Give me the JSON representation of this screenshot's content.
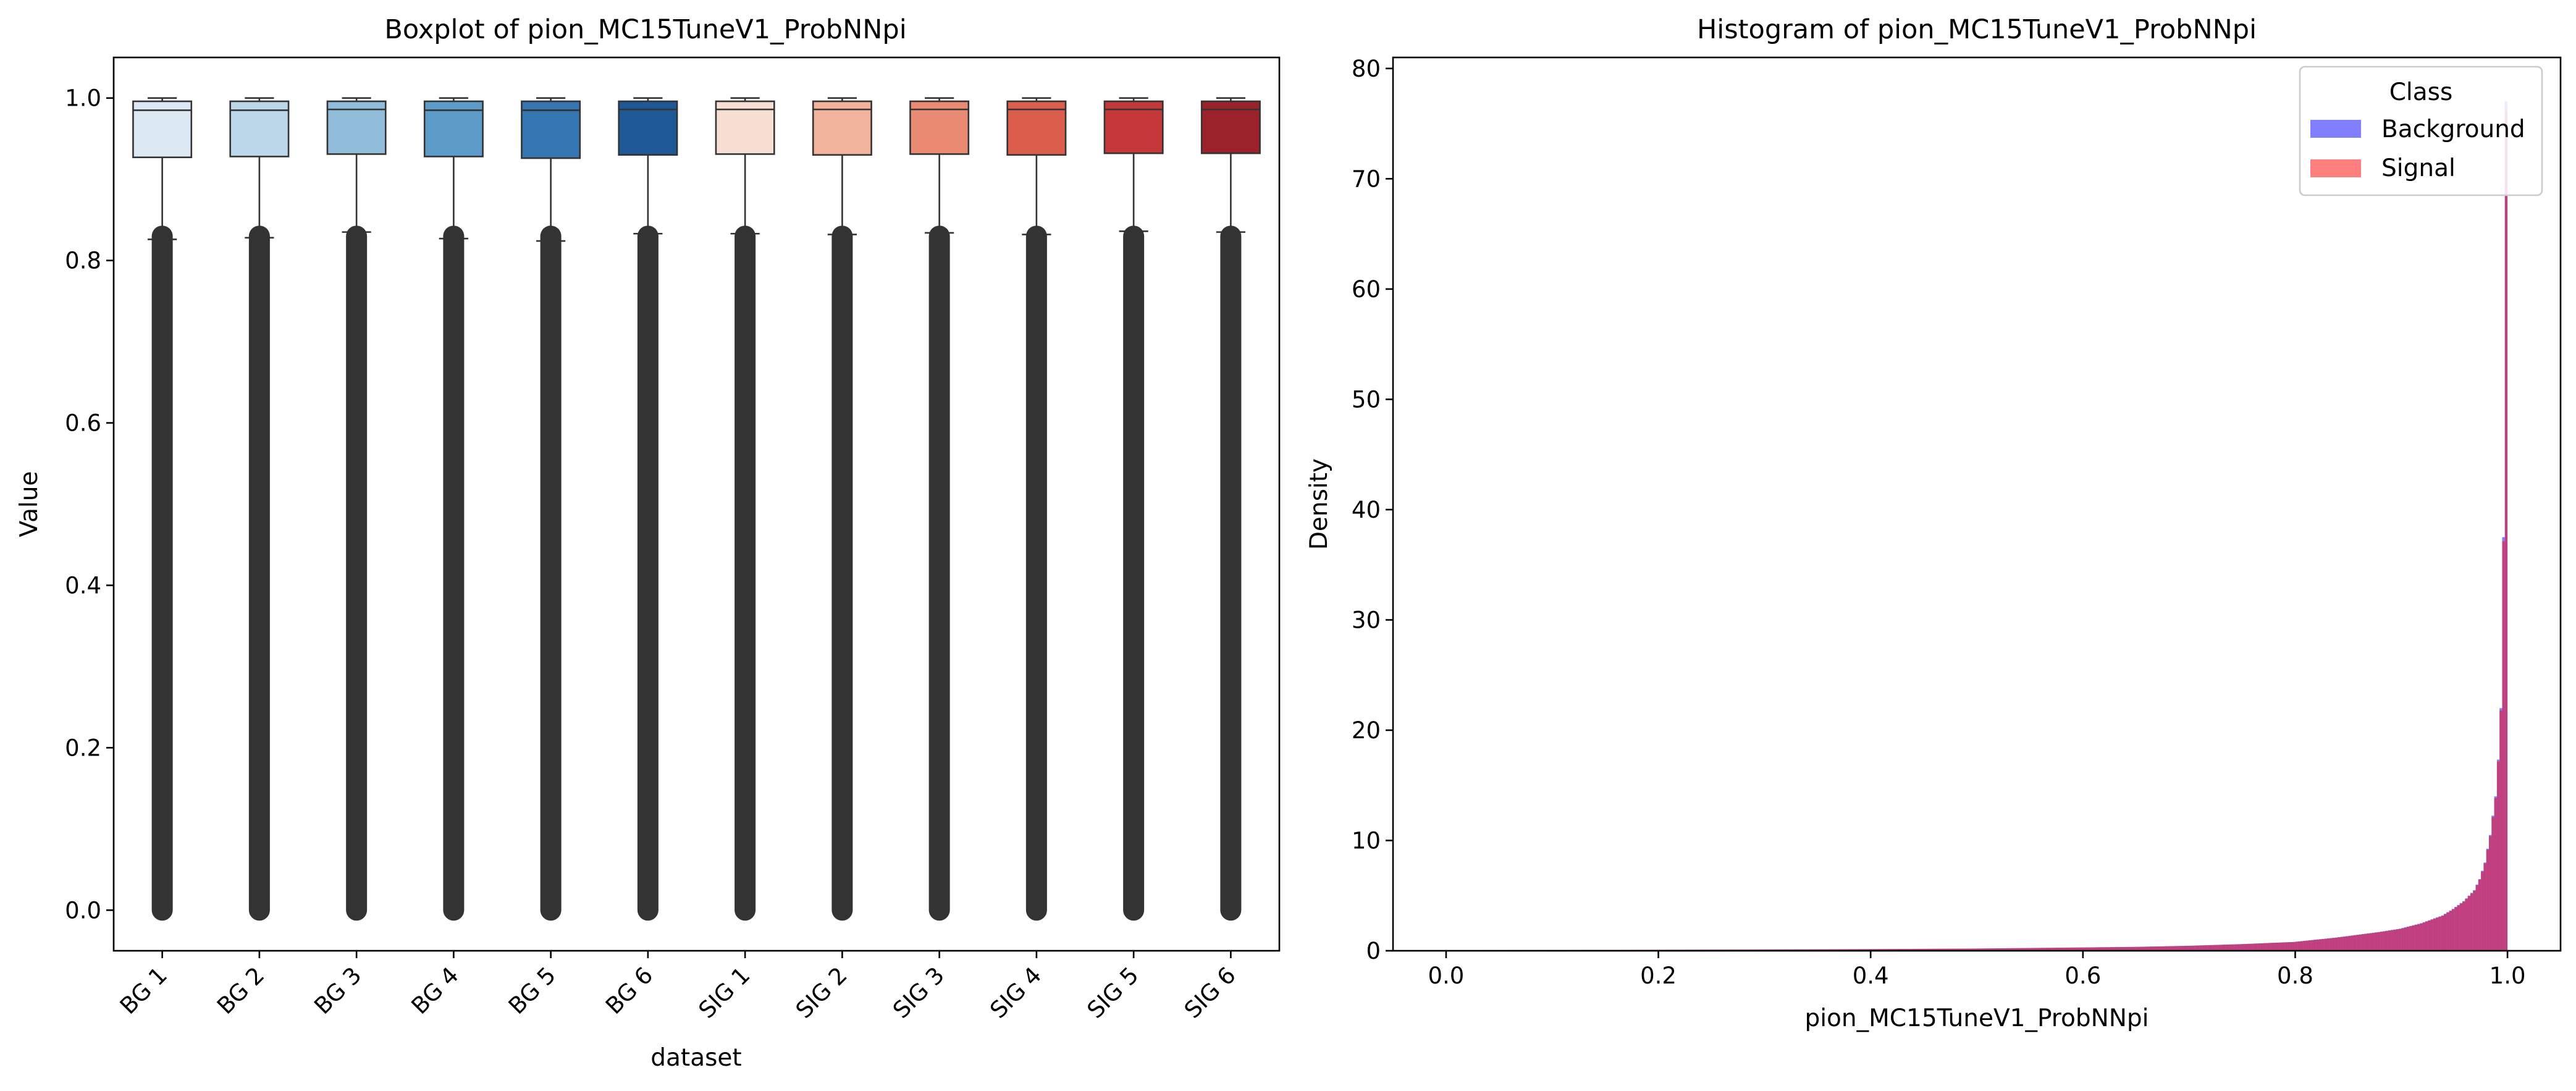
{
  "chart_data": [
    {
      "type": "box",
      "title": "Boxplot of pion_MC15TuneV1_ProbNNpi",
      "xlabel": "dataset",
      "ylabel": "Value",
      "ylim": [
        -0.05,
        1.05
      ],
      "yticks": [
        "0.0",
        "0.2",
        "0.4",
        "0.6",
        "0.8",
        "1.0"
      ],
      "grid": false,
      "outlier_range": [
        0.0,
        0.83
      ],
      "categories": [
        "BG 1",
        "BG 2",
        "BG 3",
        "BG 4",
        "BG 5",
        "BG 6",
        "SIG 1",
        "SIG 2",
        "SIG 3",
        "SIG 4",
        "SIG 5",
        "SIG 6"
      ],
      "boxes": [
        {
          "label": "BG 1",
          "whisker_low": 0.826,
          "q1": 0.927,
          "median": 0.985,
          "q3": 0.996,
          "whisker_high": 1.0,
          "color": "#dce9f5"
        },
        {
          "label": "BG 2",
          "whisker_low": 0.828,
          "q1": 0.928,
          "median": 0.985,
          "q3": 0.996,
          "whisker_high": 1.0,
          "color": "#bdd7ea"
        },
        {
          "label": "BG 3",
          "whisker_low": 0.835,
          "q1": 0.931,
          "median": 0.986,
          "q3": 0.996,
          "whisker_high": 1.0,
          "color": "#91bcda"
        },
        {
          "label": "BG 4",
          "whisker_low": 0.827,
          "q1": 0.928,
          "median": 0.985,
          "q3": 0.996,
          "whisker_high": 1.0,
          "color": "#5d9cc9"
        },
        {
          "label": "BG 5",
          "whisker_low": 0.824,
          "q1": 0.926,
          "median": 0.985,
          "q3": 0.996,
          "whisker_high": 1.0,
          "color": "#3576b1"
        },
        {
          "label": "BG 6",
          "whisker_low": 0.833,
          "q1": 0.93,
          "median": 0.986,
          "q3": 0.996,
          "whisker_high": 1.0,
          "color": "#1e5895"
        },
        {
          "label": "SIG 1",
          "whisker_low": 0.833,
          "q1": 0.931,
          "median": 0.986,
          "q3": 0.996,
          "whisker_high": 1.0,
          "color": "#f8dfd3"
        },
        {
          "label": "SIG 2",
          "whisker_low": 0.832,
          "q1": 0.93,
          "median": 0.986,
          "q3": 0.996,
          "whisker_high": 1.0,
          "color": "#f1b39c"
        },
        {
          "label": "SIG 3",
          "whisker_low": 0.834,
          "q1": 0.931,
          "median": 0.986,
          "q3": 0.996,
          "whisker_high": 1.0,
          "color": "#e88b72"
        },
        {
          "label": "SIG 4",
          "whisker_low": 0.832,
          "q1": 0.93,
          "median": 0.986,
          "q3": 0.996,
          "whisker_high": 1.0,
          "color": "#dc5f4e"
        },
        {
          "label": "SIG 5",
          "whisker_low": 0.836,
          "q1": 0.932,
          "median": 0.986,
          "q3": 0.996,
          "whisker_high": 1.0,
          "color": "#c4383a"
        },
        {
          "label": "SIG 6",
          "whisker_low": 0.835,
          "q1": 0.932,
          "median": 0.986,
          "q3": 0.996,
          "whisker_high": 1.0,
          "color": "#9b222a"
        }
      ]
    },
    {
      "type": "histogram",
      "title": "Histogram of pion_MC15TuneV1_ProbNNpi",
      "xlabel": "pion_MC15TuneV1_ProbNNpi",
      "ylabel": "Density",
      "xlim": [
        -0.05,
        1.05
      ],
      "ylim": [
        0,
        81
      ],
      "xticks": [
        "0.0",
        "0.2",
        "0.4",
        "0.6",
        "0.8",
        "1.0"
      ],
      "yticks": [
        "0",
        "10",
        "20",
        "30",
        "40",
        "50",
        "60",
        "70",
        "80"
      ],
      "grid": false,
      "legend": {
        "title": "Class",
        "placement": "top-right"
      },
      "series": [
        {
          "name": "Background",
          "color": "#0000ff",
          "alpha": 0.5
        },
        {
          "name": "Signal",
          "color": "#ff0000",
          "alpha": 0.5
        }
      ],
      "bins": {
        "x": [
          0.0,
          0.1,
          0.2,
          0.3,
          0.4,
          0.5,
          0.6,
          0.65,
          0.7,
          0.75,
          0.8,
          0.84,
          0.88,
          0.9,
          0.92,
          0.94,
          0.95,
          0.96,
          0.97,
          0.975,
          0.98,
          0.985,
          0.99,
          0.993,
          0.995,
          0.997,
          0.998,
          0.999,
          1.0
        ],
        "density": [
          0.05,
          0.07,
          0.09,
          0.12,
          0.15,
          0.2,
          0.3,
          0.35,
          0.45,
          0.6,
          0.8,
          1.2,
          1.7,
          2.0,
          2.5,
          3.2,
          3.8,
          4.5,
          5.5,
          6.5,
          8.0,
          10.5,
          14.0,
          18.0,
          22.0,
          30.0,
          45.0,
          56.0,
          77.0
        ]
      }
    }
  ]
}
